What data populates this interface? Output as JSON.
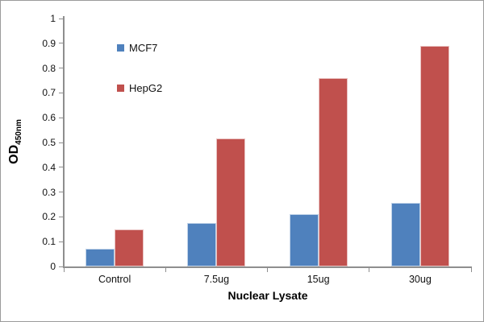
{
  "figure": {
    "background": "#ffffff",
    "border_color": "#9b9b9b"
  },
  "chart_data": {
    "type": "bar",
    "title": "",
    "categories": [
      "Control",
      "7.5ug",
      "15ug",
      "30ug"
    ],
    "series": [
      {
        "name": "MCF7",
        "color": "#4f81bd",
        "values": [
          0.07,
          0.175,
          0.21,
          0.255
        ]
      },
      {
        "name": "HepG2",
        "color": "#c0504d",
        "values": [
          0.15,
          0.515,
          0.76,
          0.89
        ]
      }
    ],
    "xlabel": "Nuclear Lysate",
    "ylabel": "OD",
    "ylabel_subscript": "450nm",
    "ylim": [
      0,
      1
    ],
    "y_ticks": [
      0,
      0.1,
      0.2,
      0.3,
      0.4,
      0.5,
      0.6,
      0.7,
      0.8,
      0.9,
      1
    ],
    "grid": false,
    "legend_position": "upper-left-inside",
    "axis_color": "#8e8e8e"
  }
}
